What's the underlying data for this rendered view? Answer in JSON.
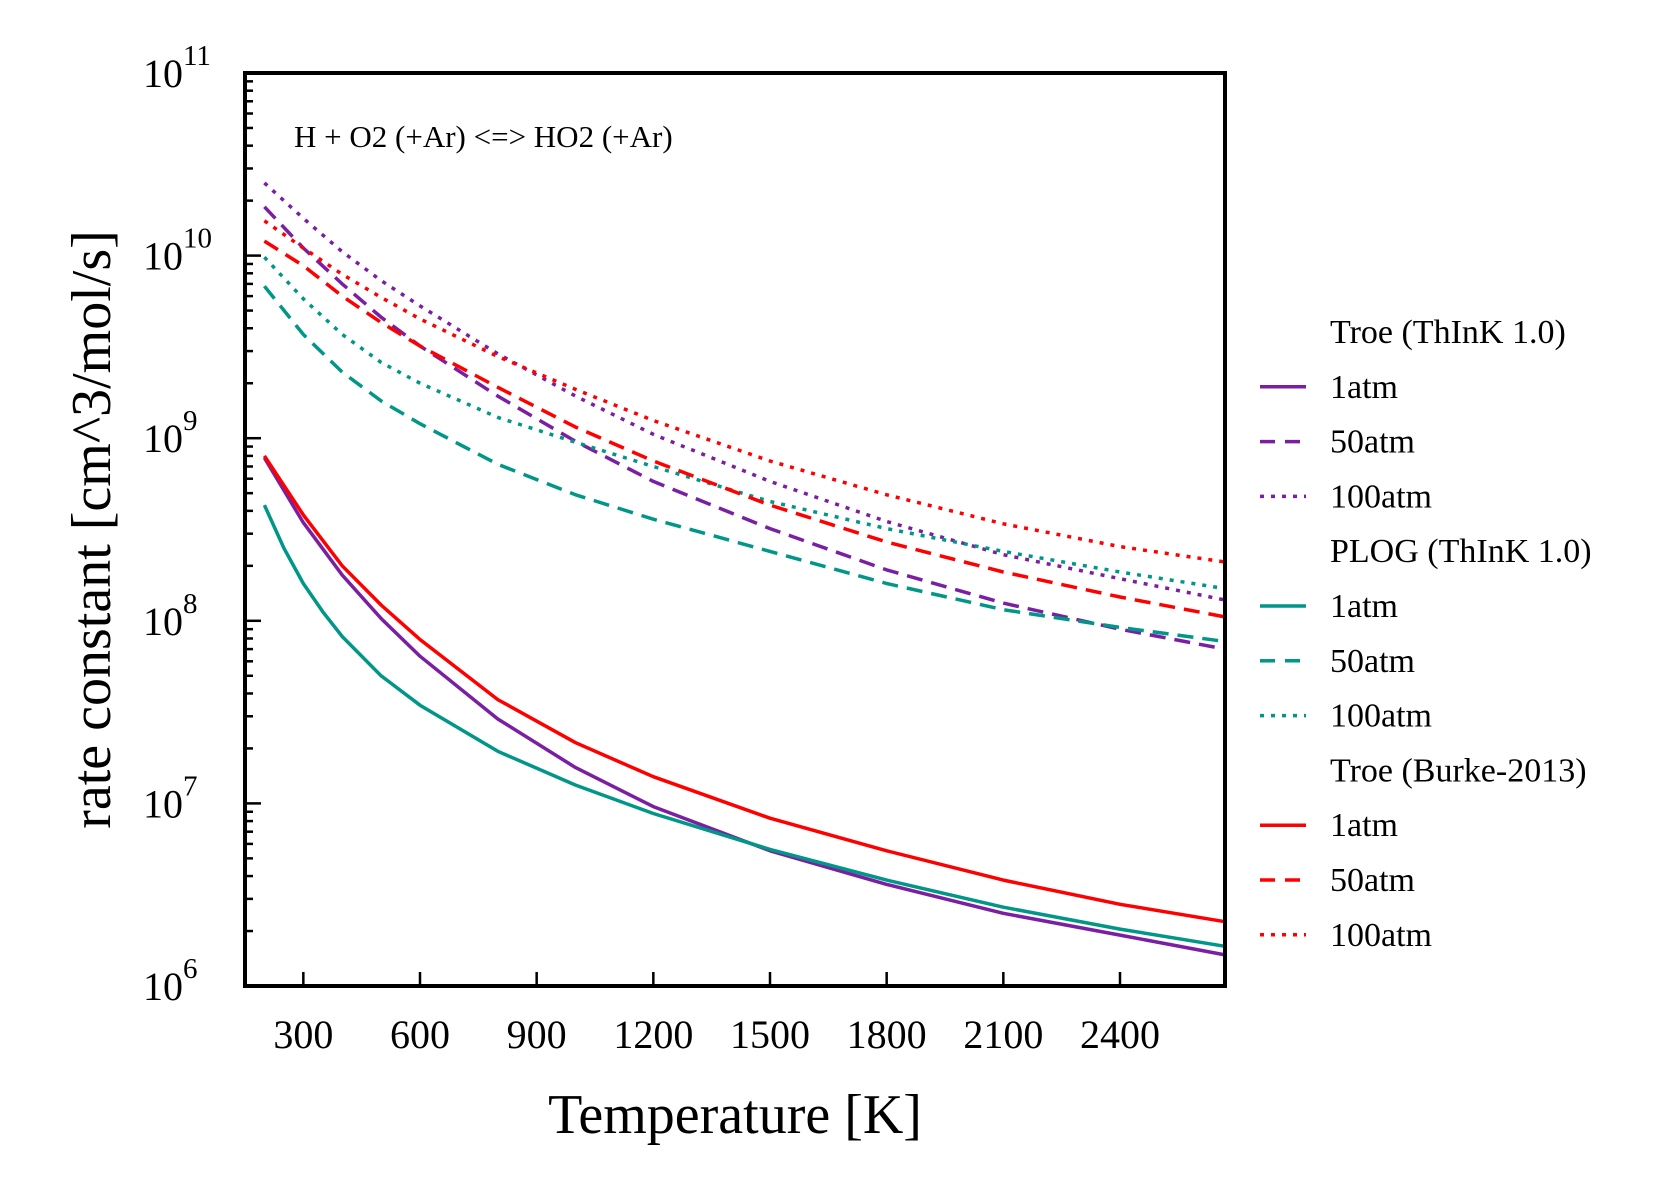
{
  "chart_data": {
    "type": "line",
    "annotation": "H + O2 (+Ar) <=> HO2 (+Ar)",
    "xlabel": "Temperature [K]",
    "ylabel": "rate constant [cm^3/mol/s]",
    "xlim": [
      150,
      2670
    ],
    "ylim": [
      1000000,
      100000000000
    ],
    "yscale": "log",
    "xticks": [
      300,
      600,
      900,
      1200,
      1500,
      1800,
      2100,
      2400
    ],
    "xtick_labels": [
      "300",
      "600",
      "900",
      "1200",
      "1500",
      "1800",
      "2100",
      "2400"
    ],
    "yticks": [
      {
        "base": "10",
        "exp": "6",
        "value": 1000000
      },
      {
        "base": "10",
        "exp": "7",
        "value": 10000000
      },
      {
        "base": "10",
        "exp": "8",
        "value": 100000000
      },
      {
        "base": "10",
        "exp": "9",
        "value": 1000000000
      },
      {
        "base": "10",
        "exp": "10",
        "value": 10000000000
      },
      {
        "base": "10",
        "exp": "11",
        "value": 100000000000
      }
    ],
    "grid": false,
    "legend_position": "right",
    "legend_groups": [
      {
        "title": "Troe (ThInK 1.0)",
        "color": "#7b1fa2",
        "series": [
          {
            "name": "1atm",
            "style": "solid",
            "x": [
              200,
              300,
              400,
              500,
              600,
              800,
              1000,
              1200,
              1500,
              1800,
              2100,
              2400,
              2670
            ],
            "y": [
              780000000,
              345000000,
              178000000,
              103000000,
              64000000,
              29000000,
              15700000,
              9600000,
              5500000,
              3600000,
              2500000,
              1900000,
              1480000
            ]
          },
          {
            "name": "50atm",
            "style": "dashed",
            "x": [
              200,
              300,
              400,
              500,
              600,
              800,
              1000,
              1200,
              1500,
              1800,
              2100,
              2400,
              2670
            ],
            "y": [
              18500000000,
              11000000000,
              7000000000,
              4600000000,
              3200000000,
              1700000000,
              960000000,
              580000000,
              320000000,
              190000000,
              125000000,
              90000000,
              70000000
            ]
          },
          {
            "name": "100atm",
            "style": "dotted",
            "x": [
              200,
              300,
              400,
              500,
              600,
              800,
              1000,
              1200,
              1500,
              1800,
              2100,
              2400,
              2670
            ],
            "y": [
              25000000000,
              16000000000,
              10500000000,
              7300000000,
              5300000000,
              2900000000,
              1700000000,
              1050000000,
              580000000,
              350000000,
              230000000,
              170000000,
              130000000
            ]
          }
        ]
      },
      {
        "title": "PLOG (ThInK 1.0)",
        "color": "#009688",
        "series": [
          {
            "name": "1atm",
            "style": "solid",
            "x": [
              200,
              250,
              300,
              350,
              400,
              500,
              600,
              800,
              1000,
              1200,
              1500,
              1800,
              2100,
              2400,
              2670
            ],
            "y": [
              430000000,
              250000000,
              160000000,
              112000000,
              82000000,
              50000000,
              34500000,
              19300000,
              12600000,
              8800000,
              5600000,
              3800000,
              2700000,
              2050000,
              1650000
            ]
          },
          {
            "name": "50atm",
            "style": "dashed",
            "x": [
              200,
              300,
              400,
              500,
              600,
              800,
              1000,
              1200,
              1500,
              1800,
              2100,
              2400,
              2670
            ],
            "y": [
              6800000000,
              3700000000,
              2300000000,
              1600000000,
              1200000000,
              720000000,
              490000000,
              360000000,
              240000000,
              160000000,
              115000000,
              92000000,
              77000000
            ]
          },
          {
            "name": "100atm",
            "style": "dotted",
            "x": [
              200,
              300,
              400,
              500,
              600,
              800,
              1000,
              1200,
              1500,
              1800,
              2100,
              2400,
              2670
            ],
            "y": [
              9800000000,
              5800000000,
              3700000000,
              2600000000,
              2000000000,
              1300000000,
              950000000,
              700000000,
              450000000,
              320000000,
              240000000,
              185000000,
              150000000
            ]
          }
        ]
      },
      {
        "title": "Troe (Burke-2013)",
        "color": "#ff0000",
        "series": [
          {
            "name": "1atm",
            "style": "solid",
            "x": [
              200,
              300,
              400,
              500,
              600,
              800,
              1000,
              1200,
              1500,
              1800,
              2100,
              2400,
              2670
            ],
            "y": [
              800000000,
              380000000,
              200000000,
              122000000,
              79000000,
              37000000,
              21500000,
              14000000,
              8300000,
              5500000,
              3800000,
              2800000,
              2250000
            ]
          },
          {
            "name": "50atm",
            "style": "dashed",
            "x": [
              200,
              300,
              400,
              500,
              600,
              800,
              1000,
              1200,
              1500,
              1800,
              2100,
              2400,
              2670
            ],
            "y": [
              12000000000,
              8800000000,
              6000000000,
              4300000000,
              3200000000,
              1900000000,
              1150000000,
              750000000,
              430000000,
              270000000,
              185000000,
              135000000,
              105000000
            ]
          },
          {
            "name": "100atm",
            "style": "dotted",
            "x": [
              200,
              300,
              400,
              500,
              600,
              800,
              1000,
              1200,
              1500,
              1800,
              2100,
              2400,
              2670
            ],
            "y": [
              15500000000,
              11000000000,
              7900000000,
              5900000000,
              4500000000,
              2800000000,
              1850000000,
              1250000000,
              750000000,
              490000000,
              340000000,
              255000000,
              210000000
            ]
          }
        ]
      }
    ]
  }
}
